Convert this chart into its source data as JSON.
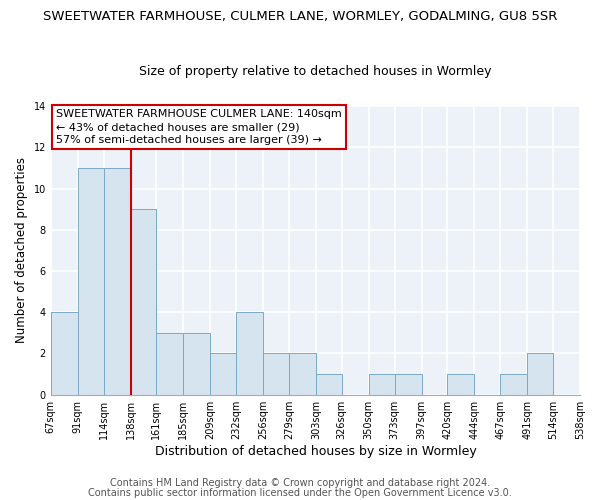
{
  "title": "SWEETWATER FARMHOUSE, CULMER LANE, WORMLEY, GODALMING, GU8 5SR",
  "subtitle": "Size of property relative to detached houses in Wormley",
  "xlabel": "Distribution of detached houses by size in Wormley",
  "ylabel": "Number of detached properties",
  "bin_edges": [
    67,
    91,
    114,
    138,
    161,
    185,
    209,
    232,
    256,
    279,
    303,
    326,
    350,
    373,
    397,
    420,
    444,
    467,
    491,
    514,
    538
  ],
  "bar_heights": [
    4,
    11,
    11,
    9,
    3,
    3,
    2,
    4,
    2,
    2,
    1,
    0,
    1,
    1,
    0,
    1,
    0,
    1,
    2,
    0
  ],
  "bar_color": "#d6e4f0",
  "bar_edge_color": "#7aaac8",
  "vline_x": 138,
  "vline_color": "#cc0000",
  "ylim": [
    0,
    14
  ],
  "yticks": [
    0,
    2,
    4,
    6,
    8,
    10,
    12,
    14
  ],
  "annotation_title": "SWEETWATER FARMHOUSE CULMER LANE: 140sqm",
  "annotation_line1": "← 43% of detached houses are smaller (29)",
  "annotation_line2": "57% of semi-detached houses are larger (39) →",
  "annotation_box_color": "#ffffff",
  "annotation_box_edge": "#cc0000",
  "footer_line1": "Contains HM Land Registry data © Crown copyright and database right 2024.",
  "footer_line2": "Contains public sector information licensed under the Open Government Licence v3.0.",
  "bg_color": "#ffffff",
  "plot_bg_color": "#edf2f9",
  "grid_color": "#ffffff",
  "title_fontsize": 9.5,
  "subtitle_fontsize": 9,
  "xlabel_fontsize": 9,
  "ylabel_fontsize": 8.5,
  "tick_label_fontsize": 7,
  "footer_fontsize": 7,
  "annotation_fontsize": 8
}
